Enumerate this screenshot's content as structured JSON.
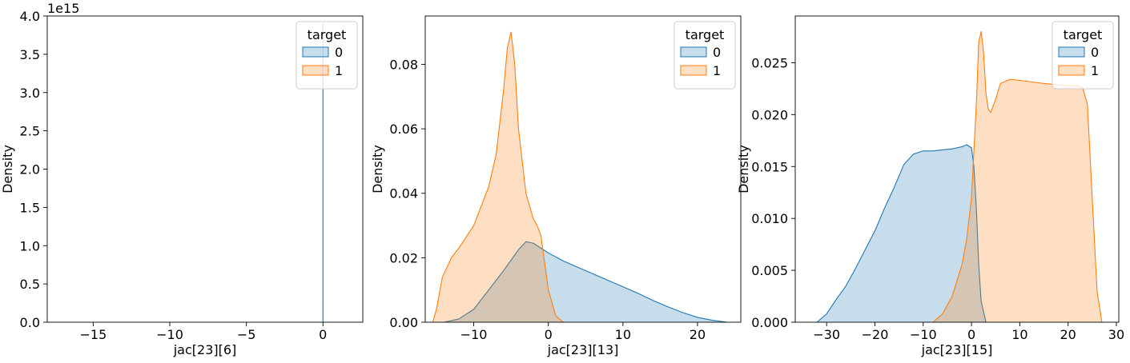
{
  "chart_data": [
    {
      "type": "area",
      "xlabel": "jac[23][6]",
      "ylabel": "Density",
      "offset_label": "1e15",
      "xlim": [
        -18,
        2.6
      ],
      "ylim": [
        0,
        4.0
      ],
      "xticks": [
        -15,
        -10,
        -5,
        0
      ],
      "yticks": [
        0.0,
        0.5,
        1.0,
        1.5,
        2.0,
        2.5,
        3.0,
        3.5,
        4.0
      ],
      "ytick_labels": [
        "0.0",
        "0.5",
        "1.0",
        "1.5",
        "2.0",
        "2.5",
        "3.0",
        "3.5",
        "4.0"
      ],
      "legend": {
        "title": "target",
        "placement": "top-right",
        "entries": [
          "0",
          "1"
        ]
      },
      "series": [
        {
          "name": "0",
          "color": "#1f77b4",
          "x": [
            -0.001,
            0,
            0.001
          ],
          "y": [
            0,
            3.9,
            0
          ]
        },
        {
          "name": "1",
          "color": "#ff7f0e",
          "x": [],
          "y": []
        }
      ]
    },
    {
      "type": "area",
      "xlabel": "jac[23][13]",
      "ylabel": "Density",
      "xlim": [
        -16.5,
        25.8
      ],
      "ylim": [
        0,
        0.095
      ],
      "xticks": [
        -10,
        0,
        10,
        20
      ],
      "yticks": [
        0.0,
        0.02,
        0.04,
        0.06,
        0.08
      ],
      "ytick_labels": [
        "0.00",
        "0.02",
        "0.04",
        "0.06",
        "0.08"
      ],
      "legend": {
        "title": "target",
        "placement": "top-right",
        "entries": [
          "0",
          "1"
        ]
      },
      "series": [
        {
          "name": "0",
          "color": "#1f77b4",
          "x": [
            -14,
            -12,
            -10,
            -8,
            -6,
            -4,
            -3,
            -2,
            0,
            2,
            4,
            6,
            8,
            10,
            12,
            14,
            16,
            18,
            20,
            22,
            24
          ],
          "y": [
            0.0,
            0.001,
            0.004,
            0.01,
            0.016,
            0.0225,
            0.025,
            0.0245,
            0.0215,
            0.019,
            0.017,
            0.015,
            0.013,
            0.011,
            0.009,
            0.0068,
            0.0048,
            0.003,
            0.0015,
            0.0006,
            0.0
          ]
        },
        {
          "name": "1",
          "color": "#ff7f0e",
          "x": [
            -15.5,
            -15,
            -14.2,
            -13,
            -12,
            -10,
            -8,
            -7,
            -6,
            -5.5,
            -5,
            -4.5,
            -4,
            -3,
            -2,
            -1.5,
            -1,
            0,
            1,
            2
          ],
          "y": [
            0.0,
            0.004,
            0.014,
            0.02,
            0.023,
            0.03,
            0.042,
            0.052,
            0.072,
            0.085,
            0.09,
            0.08,
            0.06,
            0.04,
            0.032,
            0.03,
            0.027,
            0.01,
            0.002,
            0.0
          ]
        }
      ]
    },
    {
      "type": "area",
      "xlabel": "jac[23][15]",
      "ylabel": "Density",
      "xlim": [
        -36.5,
        30.5
      ],
      "ylim": [
        0,
        0.0295
      ],
      "xticks": [
        -30,
        -20,
        -10,
        0,
        10,
        20,
        30
      ],
      "yticks": [
        0.0,
        0.005,
        0.01,
        0.015,
        0.02,
        0.025
      ],
      "ytick_labels": [
        "0.000",
        "0.005",
        "0.010",
        "0.015",
        "0.020",
        "0.025"
      ],
      "legend": {
        "title": "target",
        "placement": "top-right",
        "entries": [
          "0",
          "1"
        ]
      },
      "series": [
        {
          "name": "0",
          "color": "#1f77b4",
          "x": [
            -32,
            -30,
            -28,
            -26,
            -24,
            -22,
            -20,
            -18,
            -16,
            -14,
            -12,
            -10,
            -8,
            -6,
            -4,
            -2,
            -1,
            0,
            0.5,
            1,
            1.5,
            2,
            3
          ],
          "y": [
            0.0,
            0.0008,
            0.0022,
            0.0035,
            0.0052,
            0.007,
            0.0088,
            0.011,
            0.013,
            0.0152,
            0.0162,
            0.0165,
            0.0165,
            0.0166,
            0.0167,
            0.0169,
            0.0171,
            0.0168,
            0.015,
            0.011,
            0.0055,
            0.002,
            0.0
          ]
        },
        {
          "name": "1",
          "color": "#ff7f0e",
          "x": [
            -8,
            -6,
            -4,
            -2,
            -1,
            0,
            1,
            1.5,
            2,
            2.5,
            3,
            3.5,
            4,
            5,
            6,
            8,
            10,
            15,
            20,
            22,
            23,
            24,
            25,
            26,
            27
          ],
          "y": [
            0.0,
            0.0008,
            0.0025,
            0.0055,
            0.008,
            0.012,
            0.021,
            0.027,
            0.028,
            0.026,
            0.022,
            0.0205,
            0.0202,
            0.0215,
            0.023,
            0.0234,
            0.0233,
            0.023,
            0.0228,
            0.0228,
            0.0226,
            0.021,
            0.012,
            0.003,
            0.0
          ]
        }
      ]
    }
  ]
}
